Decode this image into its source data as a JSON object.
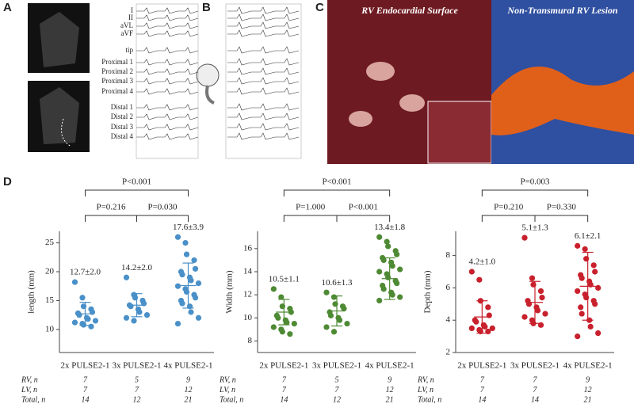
{
  "panels": {
    "a": "A",
    "b": "B",
    "c": "C",
    "d": "D"
  },
  "ecg_leads": [
    "I",
    "II",
    "aVL",
    "aVF",
    "tip",
    "Proximal 1",
    "Proximal 2",
    "Proximal 3",
    "Proximal 4",
    "Distal 1",
    "Distal 2",
    "Distal 3",
    "Distal 4"
  ],
  "photo_titles": [
    "RV Endocardial Surface",
    "Non-Transmural RV Lesion"
  ],
  "chart_data": [
    {
      "type": "dot",
      "ylabel": "length (mm)",
      "color": "#4a90c8",
      "categories": [
        "2x PULSE2-1",
        "3x PULSE2-1",
        "4x PULSE2-1"
      ],
      "ylim": [
        6,
        27
      ],
      "yticks": [
        10,
        15,
        20,
        25
      ],
      "values": [
        [
          18.2,
          15.5,
          14.0,
          13.5,
          13.0,
          12.8,
          12.5,
          12.0,
          11.8,
          11.5,
          11.2,
          11.0,
          10.8,
          10.5
        ],
        [
          19.0,
          16.0,
          15.5,
          15.0,
          14.5,
          14.2,
          14.0,
          13.5,
          13.0,
          12.5,
          12.0,
          11.5
        ],
        [
          26,
          25,
          23,
          22,
          20.5,
          20,
          19.5,
          19,
          18.5,
          18,
          17.5,
          17,
          16.5,
          16,
          15.5,
          15,
          14.5,
          14,
          13,
          12,
          11
        ]
      ],
      "summary": [
        {
          "mean": 12.7,
          "sd": 2.0,
          "label": "12.7±2.0"
        },
        {
          "mean": 14.2,
          "sd": 2.0,
          "label": "14.2±2.0"
        },
        {
          "mean": 17.6,
          "sd": 3.9,
          "label": "17.6±3.9"
        }
      ],
      "comparisons": [
        {
          "between": [
            0,
            1
          ],
          "label": "P=0.216"
        },
        {
          "between": [
            1,
            2
          ],
          "label": "P=0.030"
        },
        {
          "between": [
            0,
            2
          ],
          "label": "P<0.001"
        }
      ],
      "table": [
        {
          "label": "RV, n",
          "values": [
            7,
            5,
            9
          ]
        },
        {
          "label": "LV, n",
          "values": [
            7,
            7,
            12
          ]
        },
        {
          "label": "Total, n",
          "values": [
            14,
            12,
            21
          ]
        }
      ]
    },
    {
      "type": "dot",
      "ylabel": "Width (mm)",
      "color": "#4e8a34",
      "categories": [
        "2x PULSE2-1",
        "3x PULSE2-1",
        "4x PULSE2-1"
      ],
      "ylim": [
        7,
        17.5
      ],
      "yticks": [
        8,
        10,
        12,
        14,
        16
      ],
      "values": [
        [
          12.5,
          11.8,
          11.0,
          10.8,
          10.5,
          10.2,
          10.0,
          9.8,
          9.6,
          9.5,
          9.2,
          9.0,
          8.8,
          8.6
        ],
        [
          12.2,
          11.8,
          11.2,
          11.0,
          10.8,
          10.5,
          10.2,
          10.0,
          9.8,
          9.5,
          9.2,
          8.8
        ],
        [
          17,
          16.6,
          16.2,
          15.8,
          15.5,
          15.2,
          15,
          14.8,
          14.5,
          14.2,
          14,
          13.8,
          13.5,
          13.2,
          13,
          12.8,
          12.5,
          12.2,
          12,
          11.8,
          11.5
        ]
      ],
      "summary": [
        {
          "mean": 10.5,
          "sd": 1.1,
          "label": "10.5±1.1"
        },
        {
          "mean": 10.6,
          "sd": 1.3,
          "label": "10.6±1.3"
        },
        {
          "mean": 13.4,
          "sd": 1.8,
          "label": "13.4±1.8"
        }
      ],
      "comparisons": [
        {
          "between": [
            0,
            1
          ],
          "label": "P=1.000"
        },
        {
          "between": [
            1,
            2
          ],
          "label": "P<0.001"
        },
        {
          "between": [
            0,
            2
          ],
          "label": "P<0.001"
        }
      ],
      "table": [
        {
          "label": "RV, n",
          "values": [
            7,
            5,
            9
          ]
        },
        {
          "label": "LV, n",
          "values": [
            7,
            7,
            12
          ]
        },
        {
          "label": "Total, n",
          "values": [
            14,
            12,
            21
          ]
        }
      ]
    },
    {
      "type": "dot",
      "ylabel": "Depth (mm)",
      "color": "#c8202c",
      "categories": [
        "2x PULSE2-1",
        "3x PULSE2-1",
        "4x PULSE2-1"
      ],
      "ylim": [
        2,
        9.5
      ],
      "yticks": [
        2,
        4,
        6,
        8
      ],
      "values": [
        [
          7.0,
          6.5,
          5.2,
          4.8,
          4.3,
          4.0,
          3.9,
          3.7,
          3.6,
          3.5,
          3.5,
          3.4,
          3.3,
          3.3
        ],
        [
          9.1,
          6.6,
          6.2,
          5.8,
          5.4,
          5.2,
          5.0,
          4.8,
          4.6,
          4.4,
          4.2,
          4.0,
          3.8,
          3.7
        ],
        [
          8.6,
          8.4,
          7.8,
          7.4,
          7.0,
          6.8,
          6.6,
          6.4,
          6.2,
          6.0,
          5.8,
          5.6,
          5.4,
          5.2,
          5.0,
          4.8,
          4.4,
          4.0,
          3.6,
          3.2,
          3.0
        ]
      ],
      "summary": [
        {
          "mean": 4.2,
          "sd": 1.0,
          "label": "4.2±1.0"
        },
        {
          "mean": 5.1,
          "sd": 1.3,
          "label": "5.1±1.3"
        },
        {
          "mean": 6.1,
          "sd": 2.1,
          "label": "6.1±2.1"
        }
      ],
      "comparisons": [
        {
          "between": [
            0,
            1
          ],
          "label": "P=0.210"
        },
        {
          "between": [
            1,
            2
          ],
          "label": "P=0.330"
        },
        {
          "between": [
            0,
            2
          ],
          "label": "P=0.003"
        }
      ],
      "table": [
        {
          "label": "RV, n",
          "values": [
            7,
            7,
            9
          ]
        },
        {
          "label": "LV, n",
          "values": [
            7,
            7,
            12
          ]
        },
        {
          "label": "Total, n",
          "values": [
            14,
            14,
            21
          ]
        }
      ]
    }
  ]
}
